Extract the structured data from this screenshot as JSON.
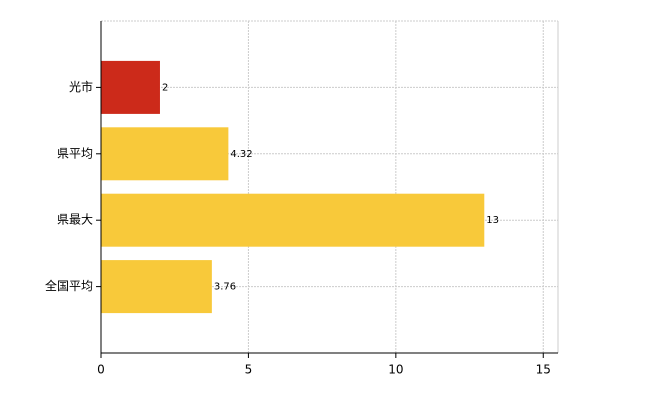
{
  "chart_data": {
    "type": "hbar",
    "categories": [
      "光市",
      "県平均",
      "県最大",
      "全国平均"
    ],
    "values": [
      2,
      4.32,
      13,
      3.76
    ],
    "colors": [
      "#cc2a1a",
      "#f8c93a",
      "#f8c93a",
      "#f8c93a"
    ],
    "xlim": [
      0,
      15.5
    ],
    "xticks": [
      0,
      5,
      10,
      15
    ],
    "grid": true
  }
}
